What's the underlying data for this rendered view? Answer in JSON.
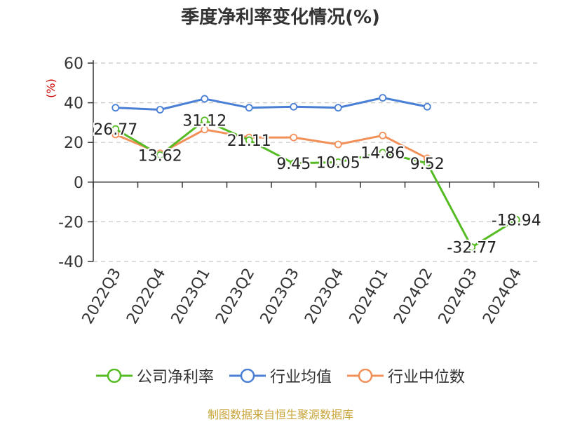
{
  "chart_data": {
    "type": "line",
    "title": "季度净利率变化情况(%)",
    "ylabel": "(%)",
    "xlabel": "",
    "ylim": [
      -40,
      60
    ],
    "yticks": [
      60,
      40,
      20,
      0,
      -20,
      -40
    ],
    "grid": true,
    "legend_position": "bottom",
    "categories": [
      "2022Q3",
      "2022Q4",
      "2023Q1",
      "2023Q2",
      "2023Q3",
      "2023Q4",
      "2024Q1",
      "2024Q2",
      "2024Q3",
      "2024Q4"
    ],
    "series": [
      {
        "name": "公司净利率",
        "color": "#55bb22",
        "values": [
          26.77,
          13.62,
          31.12,
          21.11,
          9.45,
          10.05,
          14.86,
          9.52,
          -32.77,
          -18.94
        ],
        "labels": [
          "26.77",
          "13.62",
          "31.12",
          "21.11",
          "9.45",
          "10.05",
          "14.86",
          "9.52",
          "-32.77",
          "-18.94"
        ]
      },
      {
        "name": "行业均值",
        "color": "#4a7fd6",
        "values": [
          37.5,
          36.5,
          42.0,
          37.5,
          38.0,
          37.5,
          42.5,
          38.0,
          null,
          null
        ]
      },
      {
        "name": "行业中位数",
        "color": "#f2905a",
        "values": [
          24.0,
          14.5,
          26.5,
          22.5,
          22.5,
          19.0,
          23.5,
          12.0,
          null,
          null
        ]
      }
    ]
  },
  "source": "制图数据来自恒生聚源数据库"
}
